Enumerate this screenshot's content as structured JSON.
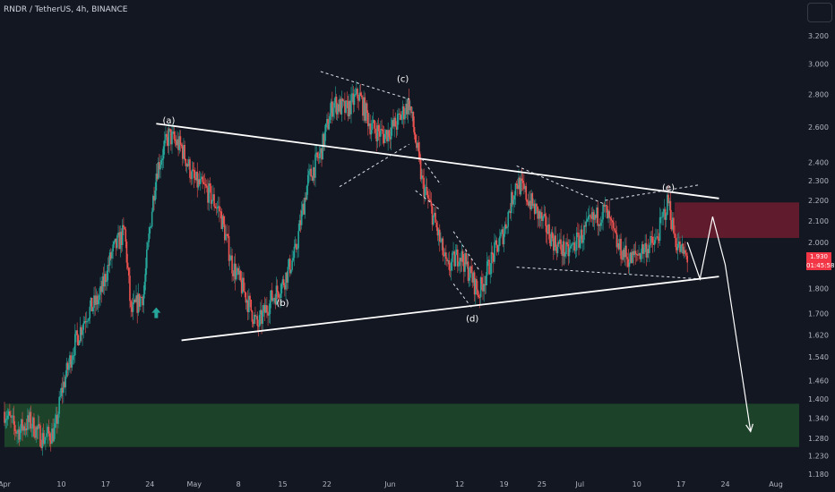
{
  "header": {
    "title": "RNDR / TetherUS, 4h, BINANCE"
  },
  "price_tag": {
    "price": "1.930",
    "countdown": "01:45:58"
  },
  "chart_data": {
    "type": "candlestick",
    "title": "RNDR / TetherUS, 4h, BINANCE",
    "y_scale": "log",
    "ylim": [
      1.17,
      3.4
    ],
    "y_ticks": [
      "3.200",
      "3.000",
      "2.800",
      "2.600",
      "2.400",
      "2.300",
      "2.200",
      "2.100",
      "2.000",
      "1.930",
      "1.900",
      "1.800",
      "1.700",
      "1.620",
      "1.540",
      "1.460",
      "1.400",
      "1.340",
      "1.280",
      "1.230",
      "1.180"
    ],
    "x_ticks": [
      "Apr",
      "10",
      "17",
      "24",
      "May",
      "8",
      "15",
      "22",
      "Jun",
      "12",
      "19",
      "25",
      "Jul",
      "10",
      "17",
      "24",
      "Aug"
    ],
    "x_tick_dates": [
      "2023-04-01",
      "2023-04-10",
      "2023-04-17",
      "2023-04-24",
      "2023-05-01",
      "2023-05-08",
      "2023-05-15",
      "2023-05-22",
      "2023-06-01",
      "2023-06-12",
      "2023-06-19",
      "2023-06-25",
      "2023-07-01",
      "2023-07-10",
      "2023-07-17",
      "2023-07-24",
      "2023-08-01"
    ],
    "price_path": [
      [
        "2023-04-01",
        1.36
      ],
      [
        "2023-04-03",
        1.3
      ],
      [
        "2023-04-05",
        1.33
      ],
      [
        "2023-04-07",
        1.28
      ],
      [
        "2023-04-09",
        1.3
      ],
      [
        "2023-04-10",
        1.42
      ],
      [
        "2023-04-12",
        1.58
      ],
      [
        "2023-04-14",
        1.7
      ],
      [
        "2023-04-16",
        1.76
      ],
      [
        "2023-04-18",
        1.95
      ],
      [
        "2023-04-20",
        2.05
      ],
      [
        "2023-04-21",
        1.7
      ],
      [
        "2023-04-23",
        1.78
      ],
      [
        "2023-04-25",
        2.35
      ],
      [
        "2023-04-27",
        2.55
      ],
      [
        "2023-04-29",
        2.48
      ],
      [
        "2023-05-01",
        2.3
      ],
      [
        "2023-05-03",
        2.25
      ],
      [
        "2023-05-05",
        2.15
      ],
      [
        "2023-05-07",
        1.9
      ],
      [
        "2023-05-09",
        1.78
      ],
      [
        "2023-05-11",
        1.65
      ],
      [
        "2023-05-13",
        1.75
      ],
      [
        "2023-05-15",
        1.82
      ],
      [
        "2023-05-17",
        1.95
      ],
      [
        "2023-05-19",
        2.3
      ],
      [
        "2023-05-21",
        2.45
      ],
      [
        "2023-05-23",
        2.75
      ],
      [
        "2023-05-25",
        2.7
      ],
      [
        "2023-05-27",
        2.8
      ],
      [
        "2023-05-29",
        2.6
      ],
      [
        "2023-05-31",
        2.55
      ],
      [
        "2023-06-02",
        2.62
      ],
      [
        "2023-06-04",
        2.75
      ],
      [
        "2023-06-06",
        2.3
      ],
      [
        "2023-06-08",
        2.1
      ],
      [
        "2023-06-10",
        1.88
      ],
      [
        "2023-06-12",
        1.95
      ],
      [
        "2023-06-14",
        1.84
      ],
      [
        "2023-06-15",
        1.78
      ],
      [
        "2023-06-17",
        1.92
      ],
      [
        "2023-06-19",
        2.05
      ],
      [
        "2023-06-21",
        2.3
      ],
      [
        "2023-06-23",
        2.2
      ],
      [
        "2023-06-25",
        2.1
      ],
      [
        "2023-06-27",
        2.0
      ],
      [
        "2023-06-29",
        1.95
      ],
      [
        "2023-07-01",
        2.02
      ],
      [
        "2023-07-03",
        2.1
      ],
      [
        "2023-07-05",
        2.15
      ],
      [
        "2023-07-07",
        1.98
      ],
      [
        "2023-07-09",
        1.92
      ],
      [
        "2023-07-11",
        1.97
      ],
      [
        "2023-07-13",
        2.0
      ],
      [
        "2023-07-15",
        2.2
      ],
      [
        "2023-07-16",
        2.02
      ],
      [
        "2023-07-17",
        1.96
      ],
      [
        "2023-07-18",
        1.93
      ]
    ],
    "waves": [
      {
        "label": "(a)",
        "date": "2023-04-27",
        "price": 2.62
      },
      {
        "label": "(b)",
        "date": "2023-05-15",
        "price": 1.73
      },
      {
        "label": "(c)",
        "date": "2023-06-03",
        "price": 2.88
      },
      {
        "label": "(d)",
        "date": "2023-06-14",
        "price": 1.67
      },
      {
        "label": "(e)",
        "date": "2023-07-15",
        "price": 2.25
      }
    ],
    "zones": [
      {
        "name": "resistance",
        "from": "2023-07-16",
        "to": "2023-08-12",
        "low": 2.02,
        "high": 2.19,
        "color": "#6e1c2e"
      },
      {
        "name": "support",
        "from": "2023-04-01",
        "to": "2023-08-12",
        "low": 1.255,
        "high": 1.385,
        "color": "#1f4a2b"
      }
    ],
    "trendlines": [
      {
        "from": [
          "2023-04-25",
          2.62
        ],
        "to": [
          "2023-07-23",
          2.21
        ]
      },
      {
        "from": [
          "2023-04-29",
          1.6
        ],
        "to": [
          "2023-07-23",
          1.85
        ]
      }
    ],
    "projection": [
      [
        "2023-07-18",
        2.0
      ],
      [
        "2023-07-20",
        1.84
      ],
      [
        "2023-07-22",
        2.12
      ],
      [
        "2023-07-24",
        1.9
      ],
      [
        "2023-07-28",
        1.3
      ]
    ],
    "colors": {
      "up": "#26a69a",
      "down": "#ef5350",
      "background": "#131722",
      "text": "#b2b5be"
    }
  }
}
